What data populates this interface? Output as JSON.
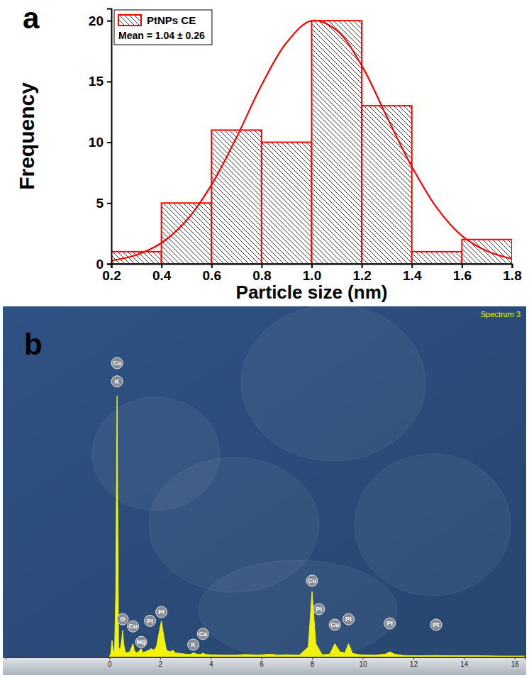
{
  "chart_data": [
    {
      "type": "histogram",
      "panel_label": "a",
      "xlabel": "Particle size (nm)",
      "ylabel": "Frequency",
      "bins": [
        0.2,
        0.4,
        0.6,
        0.8,
        1.0,
        1.2,
        1.4,
        1.6,
        1.8
      ],
      "series": [
        {
          "name": "PtNPs CE",
          "type": "bar",
          "color": "#ff0000",
          "values": [
            1,
            5,
            11,
            10,
            20,
            13,
            1,
            2
          ]
        },
        {
          "type": "line",
          "color": "#ff0000",
          "x": [
            0.2,
            0.3,
            0.4,
            0.5,
            0.6,
            0.7,
            0.8,
            0.9,
            1.0,
            1.1,
            1.2,
            1.3,
            1.4,
            1.5,
            1.6,
            1.7,
            1.8
          ],
          "values": [
            0.27,
            0.73,
            1.72,
            3.57,
            6.5,
            10.4,
            14.7,
            18.2,
            20.0,
            19.2,
            16.3,
            12.1,
            8.0,
            4.6,
            2.3,
            1.05,
            0.41
          ]
        }
      ],
      "annotations": [
        "Mean = 1.04 ± 0.26"
      ],
      "xlim": [
        0.2,
        1.8
      ],
      "ylim": [
        0,
        21
      ],
      "xticks": [
        0.2,
        0.4,
        0.6,
        0.8,
        {
          "value": 1,
          "label": "1.0"
        },
        1.2,
        1.4,
        1.6,
        1.8
      ],
      "yticks": [
        0,
        5,
        10,
        15,
        20
      ],
      "legend": "upper left",
      "grid": false
    },
    {
      "type": "area",
      "panel_label": "b",
      "title": "Spectrum 3",
      "series": [
        {
          "type": "area",
          "color": "#f2f20a",
          "x": [
            0,
            0.05,
            0.1,
            0.15,
            0.2,
            0.25,
            0.28,
            0.3,
            0.33,
            0.36,
            0.42,
            0.48,
            0.52,
            0.56,
            0.62,
            0.7,
            0.8,
            0.88,
            0.93,
            0.98,
            1.05,
            1.15,
            1.25,
            1.32,
            1.4,
            1.55,
            1.65,
            1.75,
            1.85,
            1.95,
            2.05,
            2.15,
            2.25,
            2.4,
            2.5,
            2.6,
            2.8,
            3.0,
            3.2,
            3.31,
            3.45,
            3.6,
            3.69,
            3.8,
            4.0,
            4.5,
            5.0,
            5.4,
            5.8,
            6.4,
            6.6,
            7.0,
            7.5,
            7.85,
            8.0,
            8.15,
            8.4,
            8.7,
            8.9,
            9.1,
            9.3,
            9.44,
            9.6,
            9.9,
            10.5,
            10.9,
            11.07,
            11.25,
            11.6,
            12.2,
            12.9,
            13.5,
            14.5,
            15.5,
            16.4
          ],
          "values": [
            0,
            1,
            5,
            2,
            1.5,
            20,
            60,
            80,
            40,
            3,
            2,
            5,
            8,
            4,
            1.5,
            1.2,
            1.5,
            3,
            4,
            2,
            1.2,
            1.5,
            2.5,
            1.2,
            1.5,
            2,
            2.5,
            2,
            3,
            7,
            11,
            6,
            2,
            1.5,
            2,
            1.2,
            1,
            0.8,
            0.7,
            1.2,
            0.8,
            0.7,
            1.1,
            0.7,
            0.6,
            0.5,
            0.5,
            0.7,
            0.5,
            0.8,
            0.5,
            0.6,
            0.5,
            3,
            20,
            4,
            0.6,
            0.8,
            4,
            1.5,
            1.2,
            4,
            1,
            0.6,
            0.5,
            0.8,
            1.5,
            0.8,
            0.4,
            0.3,
            0.4,
            0.3,
            0.3,
            0.2,
            0.2
          ]
        }
      ],
      "annotations": [
        {
          "text": "Ca",
          "x": 0.3,
          "y": 90
        },
        {
          "text": "K",
          "x": 0.3,
          "y": 84.4
        },
        {
          "text": "O",
          "x": 0.52,
          "y": 11.5
        },
        {
          "text": "Cu",
          "x": 0.93,
          "y": 9.3
        },
        {
          "text": "Mg",
          "x": 1.25,
          "y": 4.5
        },
        {
          "text": "Pt",
          "x": 1.6,
          "y": 11
        },
        {
          "text": "Pt",
          "x": 2.05,
          "y": 13.7
        },
        {
          "text": "K",
          "x": 3.31,
          "y": 3.7
        },
        {
          "text": "Ca",
          "x": 3.69,
          "y": 7
        },
        {
          "text": "Cu",
          "x": 8.0,
          "y": 23.3
        },
        {
          "text": "Pt",
          "x": 8.27,
          "y": 14.6
        },
        {
          "text": "Cu",
          "x": 8.9,
          "y": 9.8
        },
        {
          "text": "Pt",
          "x": 9.44,
          "y": 11.5
        },
        {
          "text": "Pt",
          "x": 11.07,
          "y": 10.2
        },
        {
          "text": "Pt",
          "x": 12.9,
          "y": 9.8
        }
      ],
      "xlim": [
        -4.1,
        16.4
      ],
      "ylim": [
        0,
        100
      ],
      "xticks": [
        0,
        2,
        4,
        6,
        8,
        10,
        12,
        14,
        16
      ],
      "tick_labels": "x",
      "grid": false
    }
  ]
}
